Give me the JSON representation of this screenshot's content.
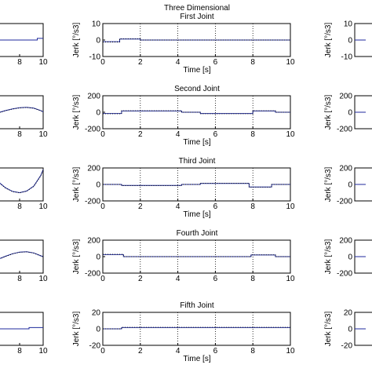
{
  "figure": {
    "title_lines": [
      "Three Dimensional",
      "First Joint"
    ]
  },
  "chart_data": [
    {
      "type": "line",
      "panel": "center",
      "row": 1,
      "title": "First Joint",
      "xlabel": "Time [s]",
      "ylabel": "Jerk [°/s3]",
      "xlim": [
        0,
        10
      ],
      "ylim": [
        -10,
        10
      ],
      "xticks": [
        0,
        2,
        4,
        6,
        8,
        10
      ],
      "yticks": [
        10,
        0,
        -10
      ],
      "grid": "vertical dotted",
      "series": [
        {
          "x": [
            0,
            0.9,
            0.9,
            2,
            2,
            10
          ],
          "y": [
            -1,
            -1,
            0.6,
            0.6,
            0,
            0
          ],
          "style": "solid"
        },
        {
          "x": [
            0,
            0.9,
            0.9,
            2,
            2,
            10
          ],
          "y": [
            -1.2,
            -1.2,
            0.8,
            0.8,
            0,
            0
          ],
          "style": "dotted"
        }
      ]
    },
    {
      "type": "line",
      "panel": "center",
      "row": 2,
      "title": "Second Joint",
      "xlabel": "Time [s]",
      "ylabel": "Jerk [°/s3]",
      "xlim": [
        0,
        10
      ],
      "ylim": [
        -200,
        200
      ],
      "xticks": [
        0,
        2,
        4,
        6,
        8,
        10
      ],
      "yticks": [
        200,
        0,
        -200
      ],
      "grid": "vertical dotted",
      "series": [
        {
          "x": [
            0,
            1,
            1,
            4.2,
            4.2,
            5.2,
            5.2,
            8,
            8,
            9.2,
            9.2,
            10
          ],
          "y": [
            -15,
            -15,
            15,
            15,
            0,
            0,
            -15,
            -15,
            15,
            15,
            0,
            0
          ],
          "style": "solid"
        },
        {
          "x": [
            0,
            1,
            1,
            4.2,
            4.2,
            5.2,
            5.2,
            8,
            8,
            9.2,
            9.2,
            10
          ],
          "y": [
            -18,
            -18,
            18,
            18,
            0,
            0,
            -18,
            -18,
            18,
            18,
            0,
            0
          ],
          "style": "dotted"
        }
      ]
    },
    {
      "type": "line",
      "panel": "center",
      "row": 3,
      "title": "Third Joint",
      "xlabel": "Time [s]",
      "ylabel": "Jerk [°/s3]",
      "xlim": [
        0,
        10
      ],
      "ylim": [
        -200,
        200
      ],
      "xticks": [
        0,
        2,
        4,
        6,
        8,
        10
      ],
      "yticks": [
        200,
        0,
        -200
      ],
      "grid": "vertical dotted",
      "series": [
        {
          "x": [
            0,
            1,
            1,
            4.2,
            4.2,
            5.2,
            5.2,
            7.8,
            7.8,
            9,
            9,
            10
          ],
          "y": [
            0,
            0,
            -12,
            -12,
            0,
            0,
            12,
            12,
            -30,
            -30,
            0,
            0
          ],
          "style": "solid"
        },
        {
          "x": [
            0,
            1,
            1,
            4.2,
            4.2,
            5.2,
            5.2,
            7.8,
            7.8,
            9,
            9,
            10
          ],
          "y": [
            0,
            0,
            -14,
            -14,
            0,
            0,
            14,
            14,
            -34,
            -34,
            0,
            0
          ],
          "style": "dotted"
        }
      ]
    },
    {
      "type": "line",
      "panel": "center",
      "row": 4,
      "title": "Fourth Joint",
      "xlabel": "",
      "ylabel": "Jerk [°/s3]",
      "xlim": [
        0,
        10
      ],
      "ylim": [
        -200,
        200
      ],
      "xticks": [
        0,
        2,
        4,
        6,
        8,
        10
      ],
      "yticks": [
        200,
        0,
        -200
      ],
      "grid": "vertical dotted",
      "series": [
        {
          "x": [
            0,
            1.1,
            1.1,
            7.9,
            7.9,
            9.2,
            9.2,
            10
          ],
          "y": [
            25,
            25,
            0,
            0,
            20,
            20,
            0,
            0
          ],
          "style": "solid"
        },
        {
          "x": [
            0,
            1.1,
            1.1,
            7.9,
            7.9,
            9.2,
            9.2,
            10
          ],
          "y": [
            28,
            28,
            0,
            0,
            22,
            22,
            0,
            0
          ],
          "style": "dotted"
        }
      ]
    },
    {
      "type": "line",
      "panel": "center",
      "row": 5,
      "title": "Fifth Joint",
      "xlabel": "Time [s]",
      "ylabel": "Jerk [°/s3]",
      "xlim": [
        0,
        10
      ],
      "ylim": [
        -20,
        20
      ],
      "xticks": [
        0,
        2,
        4,
        6,
        8,
        10
      ],
      "yticks": [
        20,
        0,
        -20
      ],
      "grid": "vertical dotted",
      "series": [
        {
          "x": [
            0,
            1,
            1,
            10
          ],
          "y": [
            0,
            0,
            1.5,
            1.5
          ],
          "style": "solid"
        },
        {
          "x": [
            0,
            1,
            1,
            10
          ],
          "y": [
            0,
            0,
            1.8,
            1.8
          ],
          "style": "dotted"
        }
      ]
    },
    {
      "type": "line",
      "panel": "left",
      "row": 1,
      "xlim": [
        5,
        10
      ],
      "ylim": [
        -10,
        10
      ],
      "xticks": [
        8,
        10
      ],
      "yticks": [],
      "series": [
        {
          "x": [
            5,
            9.5,
            9.5,
            10
          ],
          "y": [
            0,
            0,
            1,
            1
          ],
          "style": "solid"
        }
      ]
    },
    {
      "type": "line",
      "panel": "left",
      "row": 2,
      "xlim": [
        5,
        10
      ],
      "ylim": [
        -200,
        200
      ],
      "xticks": [
        8,
        10
      ],
      "yticks": [],
      "series": [
        {
          "x": [
            5,
            5.6,
            6.2,
            6.8,
            7.4,
            8.0,
            8.6,
            9.2,
            9.8,
            10
          ],
          "y": [
            -70,
            -35,
            -5,
            20,
            40,
            55,
            60,
            50,
            20,
            5
          ],
          "style": "solid"
        },
        {
          "x": [
            5,
            5.6,
            6.2,
            6.8,
            7.4,
            8.0,
            8.6,
            9.2,
            9.8,
            10
          ],
          "y": [
            -75,
            -40,
            -8,
            18,
            38,
            52,
            58,
            48,
            18,
            3
          ],
          "style": "dotted"
        }
      ]
    },
    {
      "type": "line",
      "panel": "left",
      "row": 3,
      "xlim": [
        5,
        10
      ],
      "ylim": [
        -200,
        200
      ],
      "xticks": [
        8,
        10
      ],
      "yticks": [],
      "series": [
        {
          "x": [
            5,
            5.6,
            6.2,
            6.8,
            7.4,
            8.0,
            8.6,
            9.2,
            9.8,
            10
          ],
          "y": [
            200,
            120,
            30,
            -40,
            -85,
            -100,
            -80,
            -20,
            110,
            180
          ],
          "style": "solid"
        },
        {
          "x": [
            5,
            5.6,
            6.2,
            6.8,
            7.4,
            8.0,
            8.6,
            9.2,
            9.8,
            10
          ],
          "y": [
            195,
            115,
            25,
            -45,
            -88,
            -102,
            -82,
            -24,
            104,
            175
          ],
          "style": "dotted"
        }
      ]
    },
    {
      "type": "line",
      "panel": "left",
      "row": 4,
      "xlim": [
        5,
        10
      ],
      "ylim": [
        -200,
        200
      ],
      "xticks": [
        8,
        10
      ],
      "yticks": [],
      "series": [
        {
          "x": [
            5,
            5.6,
            6.2,
            6.8,
            7.4,
            8.0,
            8.6,
            9.2,
            9.8,
            10
          ],
          "y": [
            -110,
            -70,
            -30,
            5,
            35,
            55,
            60,
            45,
            10,
            0
          ],
          "style": "solid"
        },
        {
          "x": [
            5,
            5.6,
            6.2,
            6.8,
            7.4,
            8.0,
            8.6,
            9.2,
            9.8,
            10
          ],
          "y": [
            -115,
            -75,
            -34,
            2,
            32,
            52,
            58,
            43,
            8,
            -2
          ],
          "style": "dotted"
        }
      ]
    },
    {
      "type": "line",
      "panel": "left",
      "row": 5,
      "xlim": [
        5,
        10
      ],
      "ylim": [
        -20,
        20
      ],
      "xticks": [
        8,
        10
      ],
      "yticks": [],
      "series": [
        {
          "x": [
            5,
            8.8,
            8.8,
            10
          ],
          "y": [
            0,
            0,
            1.5,
            1.5
          ],
          "style": "solid"
        }
      ]
    },
    {
      "type": "line",
      "panel": "right",
      "row": 1,
      "ylabel": "Jerk [°/s3]",
      "ylim": [
        -10,
        10
      ],
      "yticks": [
        10,
        0,
        -10
      ],
      "series": [
        {
          "x": [
            0,
            0.5
          ],
          "y": [
            0,
            0
          ],
          "style": "solid"
        }
      ]
    },
    {
      "type": "line",
      "panel": "right",
      "row": 2,
      "ylabel": "Jerk [°/s3]",
      "ylim": [
        -200,
        200
      ],
      "yticks": [
        200,
        0,
        -200
      ],
      "series": [
        {
          "x": [
            0,
            0.5
          ],
          "y": [
            0,
            0
          ],
          "style": "solid"
        }
      ]
    },
    {
      "type": "line",
      "panel": "right",
      "row": 3,
      "ylabel": "Jerk [°/s3]",
      "ylim": [
        -200,
        200
      ],
      "yticks": [
        200,
        0,
        -200
      ],
      "series": [
        {
          "x": [
            0,
            0.5
          ],
          "y": [
            0,
            0
          ],
          "style": "solid"
        }
      ]
    },
    {
      "type": "line",
      "panel": "right",
      "row": 4,
      "ylabel": "Jerk [°/s3]",
      "ylim": [
        -200,
        200
      ],
      "yticks": [
        200,
        0,
        -200
      ],
      "series": [
        {
          "x": [
            0,
            0.5
          ],
          "y": [
            0,
            0
          ],
          "style": "solid"
        }
      ]
    },
    {
      "type": "line",
      "panel": "right",
      "row": 5,
      "ylabel": "Jerk [°/s3]",
      "ylim": [
        -20,
        20
      ],
      "yticks": [
        20,
        0,
        -20
      ],
      "series": [
        {
          "x": [
            0,
            0.5
          ],
          "y": [
            0,
            0
          ],
          "style": "solid"
        }
      ]
    }
  ],
  "colors": {
    "solid_series": "#1f2a9c",
    "dotted_series": "#000000",
    "axes": "#000000",
    "grid": "#000000"
  }
}
